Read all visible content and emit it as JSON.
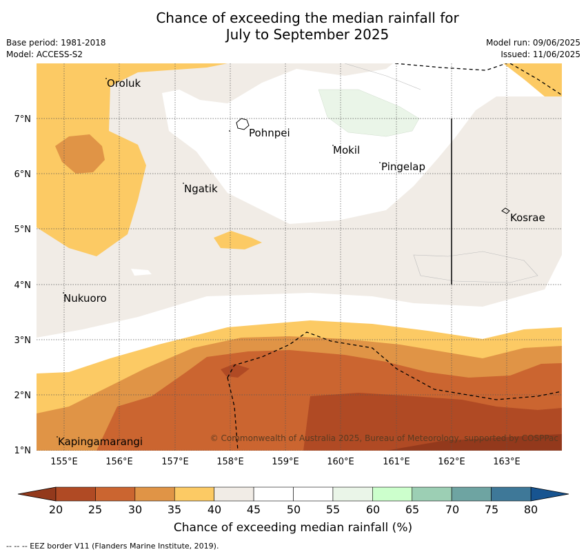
{
  "header": {
    "title_line1": "Chance of exceeding the median rainfall for",
    "title_line2": "July to September 2025",
    "base_period": "Base period: 1981-2018",
    "model": "Model: ACCESS-S2",
    "model_run": "Model run: 09/06/2025",
    "issued": "Issued: 11/06/2025"
  },
  "map": {
    "lon_ticks": [
      "155°E",
      "156°E",
      "157°E",
      "158°E",
      "159°E",
      "160°E",
      "161°E",
      "162°E",
      "163°E"
    ],
    "lat_ticks": [
      "7°N",
      "6°N",
      "5°N",
      "4°N",
      "3°N",
      "2°N",
      "1°N"
    ],
    "places": [
      {
        "name": "Oroluk"
      },
      {
        "name": "Pohnpei"
      },
      {
        "name": "Mokil"
      },
      {
        "name": "Pingelap"
      },
      {
        "name": "Ngatik"
      },
      {
        "name": "Kosrae"
      },
      {
        "name": "Nukuoro"
      },
      {
        "name": "Kapingamarangi"
      }
    ],
    "copyright": "© Commonwealth of Australia 2025, Bureau of Meteorology, supported by COSPPac"
  },
  "colorbar": {
    "label": "Chance of exceeding median rainfall (%)",
    "ticks": [
      "20",
      "25",
      "30",
      "35",
      "40",
      "45",
      "50",
      "55",
      "60",
      "65",
      "70",
      "75",
      "80"
    ],
    "colors": [
      "#b04a24",
      "#cb6530",
      "#e09446",
      "#fcca64",
      "#f1ece6",
      "#ffffff",
      "#ffffff",
      "#eaf5e8",
      "#ccffcc",
      "#9ccfb4",
      "#6ea4a2",
      "#3e7898"
    ],
    "low_color": "#93391c",
    "high_color": "#175490"
  },
  "footer": {
    "legend": "--  --  -- EEZ border V11 (Flanders Marine Institute, 2019)."
  }
}
